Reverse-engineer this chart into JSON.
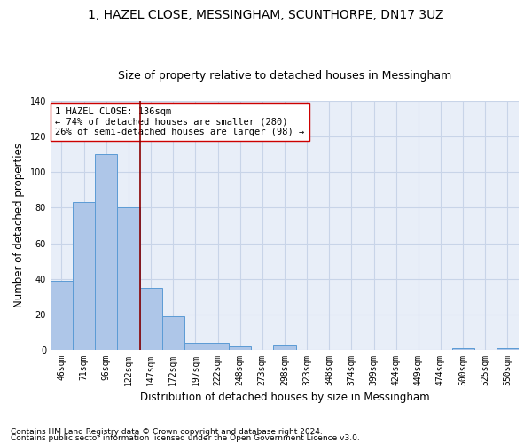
{
  "title": "1, HAZEL CLOSE, MESSINGHAM, SCUNTHORPE, DN17 3UZ",
  "subtitle": "Size of property relative to detached houses in Messingham",
  "xlabel": "Distribution of detached houses by size in Messingham",
  "ylabel": "Number of detached properties",
  "bar_labels": [
    "46sqm",
    "71sqm",
    "96sqm",
    "122sqm",
    "147sqm",
    "172sqm",
    "197sqm",
    "222sqm",
    "248sqm",
    "273sqm",
    "298sqm",
    "323sqm",
    "348sqm",
    "374sqm",
    "399sqm",
    "424sqm",
    "449sqm",
    "474sqm",
    "500sqm",
    "525sqm",
    "550sqm"
  ],
  "bar_values": [
    39,
    83,
    110,
    80,
    35,
    19,
    4,
    4,
    2,
    0,
    3,
    0,
    0,
    0,
    0,
    0,
    0,
    0,
    1,
    0,
    1
  ],
  "bar_color": "#aec6e8",
  "bar_edge_color": "#5b9bd5",
  "ylim": [
    0,
    140
  ],
  "yticks": [
    0,
    20,
    40,
    60,
    80,
    100,
    120,
    140
  ],
  "property_line_x": 3.5,
  "property_label": "1 HAZEL CLOSE: 136sqm",
  "annotation_line1": "← 74% of detached houses are smaller (280)",
  "annotation_line2": "26% of semi-detached houses are larger (98) →",
  "footnote1": "Contains HM Land Registry data © Crown copyright and database right 2024.",
  "footnote2": "Contains public sector information licensed under the Open Government Licence v3.0.",
  "line_color": "#8b0000",
  "annotation_box_color": "#ffffff",
  "annotation_box_edge": "#cc0000",
  "grid_color": "#c8d4e8",
  "background_color": "#e8eef8",
  "title_fontsize": 10,
  "subtitle_fontsize": 9,
  "axis_label_fontsize": 8.5,
  "tick_fontsize": 7,
  "annotation_fontsize": 7.5,
  "footnote_fontsize": 6.5
}
